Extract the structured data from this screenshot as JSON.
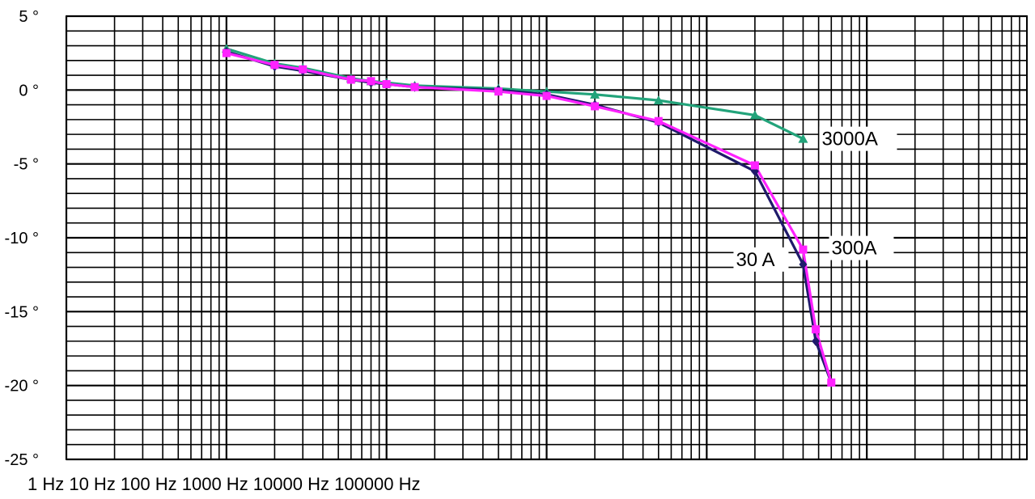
{
  "chart_data": {
    "type": "line",
    "title": "",
    "xlabel": "1 Hz 10 Hz 100 Hz 1000 Hz 10000 Hz 100000 Hz",
    "ylabel": "",
    "x_scale": "log",
    "xlim": [
      1,
      1000000
    ],
    "ylim": [
      -25,
      5
    ],
    "yticks": [
      5,
      0,
      -5,
      -10,
      -15,
      -20,
      -25
    ],
    "ytick_labels": [
      "5 °",
      "0 °",
      "-5 °",
      "-10 °",
      "-15 °",
      "-20 °",
      "-25 °"
    ],
    "grid": true,
    "legend": "none",
    "series": [
      {
        "name": "30 A",
        "color": "#1f1a6b",
        "marker": "diamond",
        "x": [
          10,
          20,
          30,
          60,
          80,
          100,
          150,
          500,
          1000,
          2000,
          5000,
          20000,
          40000,
          48000,
          60000
        ],
        "y": [
          2.6,
          1.6,
          1.3,
          0.7,
          0.5,
          0.4,
          0.2,
          0.0,
          -0.3,
          -1.0,
          -2.2,
          -5.5,
          -11.8,
          -17.0,
          -19.8
        ]
      },
      {
        "name": "300A",
        "color": "#ff22ff",
        "marker": "square",
        "x": [
          10,
          20,
          30,
          60,
          80,
          100,
          150,
          500,
          1000,
          2000,
          5000,
          20000,
          40000,
          48000,
          60000
        ],
        "y": [
          2.5,
          1.7,
          1.4,
          0.7,
          0.6,
          0.4,
          0.2,
          -0.1,
          -0.4,
          -1.1,
          -2.1,
          -5.1,
          -10.8,
          -16.2,
          -19.8
        ]
      },
      {
        "name": "3000A",
        "color": "#22a37a",
        "marker": "triangle",
        "x": [
          10,
          20,
          30,
          60,
          80,
          100,
          150,
          500,
          1000,
          2000,
          5000,
          20000,
          40000
        ],
        "y": [
          2.8,
          1.8,
          1.5,
          0.8,
          0.6,
          0.5,
          0.3,
          0.1,
          -0.1,
          -0.3,
          -0.7,
          -1.7,
          -3.3
        ]
      }
    ],
    "annotations": [
      "3000A",
      "300A",
      "30 A"
    ]
  }
}
